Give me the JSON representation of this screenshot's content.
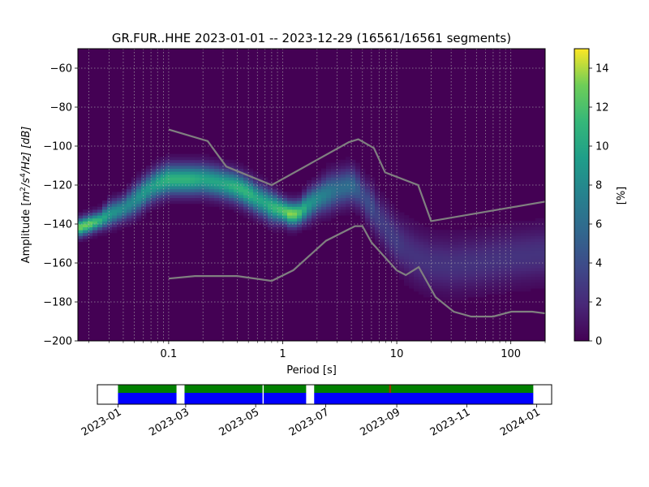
{
  "chart_data": [
    {
      "type": "heatmap",
      "title": "GR.FUR..HHE   2023-01-01 -- 2023-12-29  (16561/16561 segments)",
      "xlabel": "Period [s]",
      "ylabel": "Amplitude [m²/s⁴/Hz] [dB]",
      "ylabel_parts": {
        "pre": "Amplitude [",
        "m": "m",
        "sq": "2",
        "mid": "/s",
        "four": "4",
        "post": "/Hz] [dB]"
      },
      "x_scale": "log",
      "xlim": [
        0.016,
        200
      ],
      "ylim": [
        -200,
        -50
      ],
      "x_ticks": [
        0.1,
        1,
        10,
        100
      ],
      "x_tick_labels": [
        "0.1",
        "1",
        "10",
        "100"
      ],
      "y_ticks": [
        -200,
        -180,
        -160,
        -140,
        -120,
        -100,
        -80,
        -60
      ],
      "y_tick_labels": [
        "−200",
        "−180",
        "−160",
        "−140",
        "−120",
        "−100",
        "−80",
        "−60"
      ],
      "grid": true,
      "colormap": "viridis",
      "colorbar": {
        "label": "[%]",
        "range": [
          0,
          15
        ],
        "ticks": [
          0,
          2,
          4,
          6,
          8,
          10,
          12,
          14
        ],
        "tick_labels": [
          "0",
          "2",
          "4",
          "6",
          "8",
          "10",
          "12",
          "14"
        ]
      },
      "mode_curve": {
        "period": [
          0.016,
          0.02,
          0.025,
          0.03,
          0.04,
          0.05,
          0.06,
          0.07,
          0.08,
          0.1,
          0.12,
          0.15,
          0.2,
          0.25,
          0.3,
          0.4,
          0.5,
          0.6,
          0.7,
          0.8,
          1.0,
          1.2,
          1.4,
          1.7,
          2.0,
          2.5,
          3.0,
          3.5,
          4.0,
          4.5,
          5.0,
          6.0,
          7.0,
          8.0,
          10,
          12,
          15,
          20,
          30,
          50,
          100,
          200
        ],
        "amplitude": [
          -142,
          -140,
          -138,
          -135,
          -132,
          -128,
          -124,
          -121,
          -119,
          -117,
          -117,
          -117,
          -117,
          -118,
          -119,
          -121,
          -124,
          -127,
          -129,
          -131,
          -133,
          -135,
          -134,
          -130,
          -127,
          -124,
          -122,
          -121,
          -120,
          -122,
          -125,
          -131,
          -137,
          -142,
          -149,
          -153,
          -157,
          -160,
          -161,
          -160,
          -157,
          -155
        ],
        "spread_db": [
          3,
          3,
          3,
          4,
          4,
          5,
          5,
          5,
          5,
          5,
          5,
          5,
          5,
          5,
          5,
          5,
          5,
          5,
          5,
          5,
          4,
          4,
          4,
          5,
          5,
          6,
          6,
          6,
          6,
          6,
          6,
          7,
          7,
          8,
          8,
          9,
          9,
          9,
          9,
          9,
          9,
          9
        ],
        "peak_percent": [
          13,
          13,
          11,
          9,
          8,
          8,
          9,
          9,
          10,
          11,
          11,
          11,
          10,
          10,
          10,
          11,
          11,
          10,
          10,
          11,
          12,
          14,
          12,
          9,
          8,
          7,
          6,
          6,
          6,
          5,
          4,
          4,
          3,
          3,
          3,
          2.5,
          2.5,
          2.5,
          2.5,
          2.5,
          2.5,
          2.5
        ]
      },
      "noise_models": [
        {
          "period": [
            0.1,
            0.22,
            0.32,
            0.8,
            3.8,
            4.6,
            6.3,
            7.9,
            15.4,
            20,
            354.8
          ],
          "amplitude": [
            -91.5,
            -97.4,
            -110.5,
            -120,
            -98,
            -96.5,
            -101,
            -113.5,
            -120,
            -138.5,
            -126
          ]
        },
        {
          "period": [
            0.1,
            0.17,
            0.4,
            0.8,
            1.24,
            2.4,
            4.3,
            5.0,
            6.0,
            10,
            12,
            15.6,
            21.9,
            31.6,
            45,
            70,
            101,
            154,
            328
          ],
          "amplitude": [
            -168,
            -166.7,
            -166.7,
            -169.2,
            -163.7,
            -148.6,
            -141.1,
            -141.1,
            -149.4,
            -163.8,
            -166.2,
            -162.1,
            -177.5,
            -185,
            -187.5,
            -187.5,
            -185,
            -185,
            -187.5
          ]
        }
      ]
    },
    {
      "type": "timeline",
      "x_tick_labels": [
        "2023-01",
        "2023-03",
        "2023-05",
        "2023-07",
        "2023-09",
        "2023-11",
        "2024-01"
      ],
      "x_tick_days": [
        0,
        59,
        120,
        181,
        243,
        304,
        365
      ],
      "xlim_days": [
        -18,
        378
      ],
      "data_coverage_days": [
        [
          0,
          51
        ],
        [
          58,
          126
        ],
        [
          127,
          164
        ],
        [
          171,
          362
        ]
      ],
      "coverage_color": "#0000ff",
      "psd_coverage_color": "#008000",
      "gap_marker_color": "#ff0000",
      "gap_marker_day": 237
    }
  ]
}
